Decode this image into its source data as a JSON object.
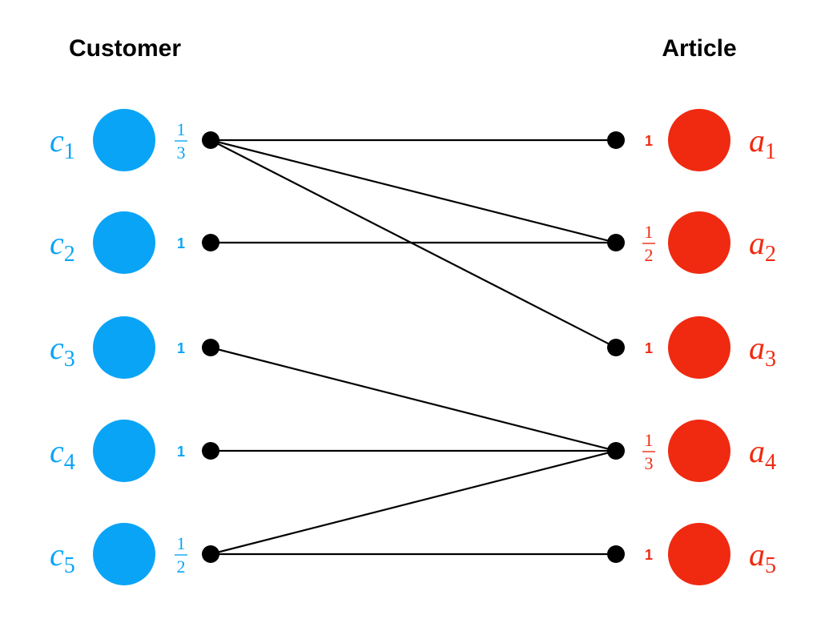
{
  "colors": {
    "customer": "#0aa4f6",
    "article": "#ef2a11",
    "edge": "#000000"
  },
  "left_title": "Customer",
  "right_title": "Article",
  "customers": [
    {
      "var": "c",
      "sub": "1",
      "weight": {
        "num": "1",
        "den": "3"
      }
    },
    {
      "var": "c",
      "sub": "2",
      "weight": "1"
    },
    {
      "var": "c",
      "sub": "3",
      "weight": "1"
    },
    {
      "var": "c",
      "sub": "4",
      "weight": "1"
    },
    {
      "var": "c",
      "sub": "5",
      "weight": {
        "num": "1",
        "den": "2"
      }
    }
  ],
  "articles": [
    {
      "var": "a",
      "sub": "1",
      "weight": "1"
    },
    {
      "var": "a",
      "sub": "2",
      "weight": {
        "num": "1",
        "den": "2"
      }
    },
    {
      "var": "a",
      "sub": "3",
      "weight": "1"
    },
    {
      "var": "a",
      "sub": "4",
      "weight": {
        "num": "1",
        "den": "3"
      }
    },
    {
      "var": "a",
      "sub": "5",
      "weight": "1"
    }
  ],
  "edges": [
    [
      1,
      1
    ],
    [
      1,
      2
    ],
    [
      1,
      3
    ],
    [
      2,
      2
    ],
    [
      3,
      4
    ],
    [
      4,
      4
    ],
    [
      5,
      4
    ],
    [
      5,
      5
    ]
  ]
}
